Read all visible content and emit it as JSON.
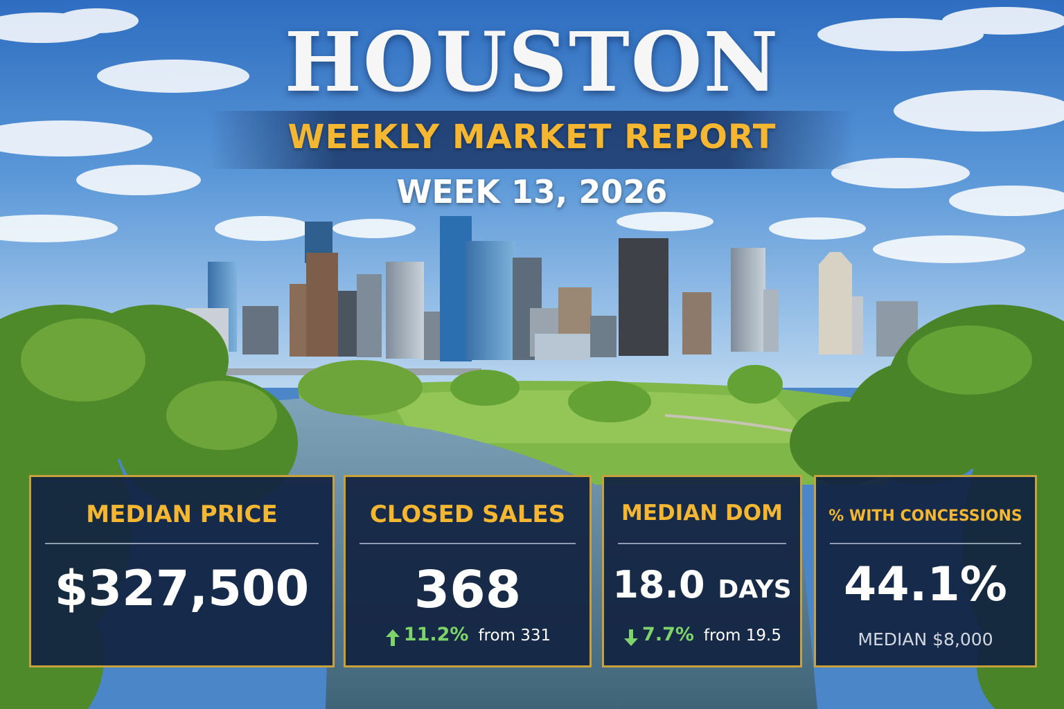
{
  "header": {
    "title": "HOUSTON",
    "subtitle": "WEEKLY MARKET REPORT",
    "week": "WEEK 13, 2026"
  },
  "stats": [
    {
      "label": "MEDIAN PRICE",
      "value": "$327,500"
    },
    {
      "label": "CLOSED SALES",
      "value": "368",
      "change_pct": "11.2%",
      "direction": "up",
      "from": "from 331"
    },
    {
      "label": "MEDIAN DOM",
      "value": "18.0",
      "unit": "DAYS",
      "change_pct": "7.7%",
      "direction": "down",
      "from": "from 19.5"
    },
    {
      "label": "% WITH CONCESSIONS",
      "value": "44.1%",
      "note": "MEDIAN $8,000"
    }
  ],
  "colors": {
    "accent_gold": "#f5b731",
    "card_bg": "#122442",
    "card_border": "#c9a13a",
    "positive_green": "#7ed36a"
  },
  "icons": {
    "up_change": "arrow-up-icon",
    "down_change": "arrow-down-icon"
  }
}
